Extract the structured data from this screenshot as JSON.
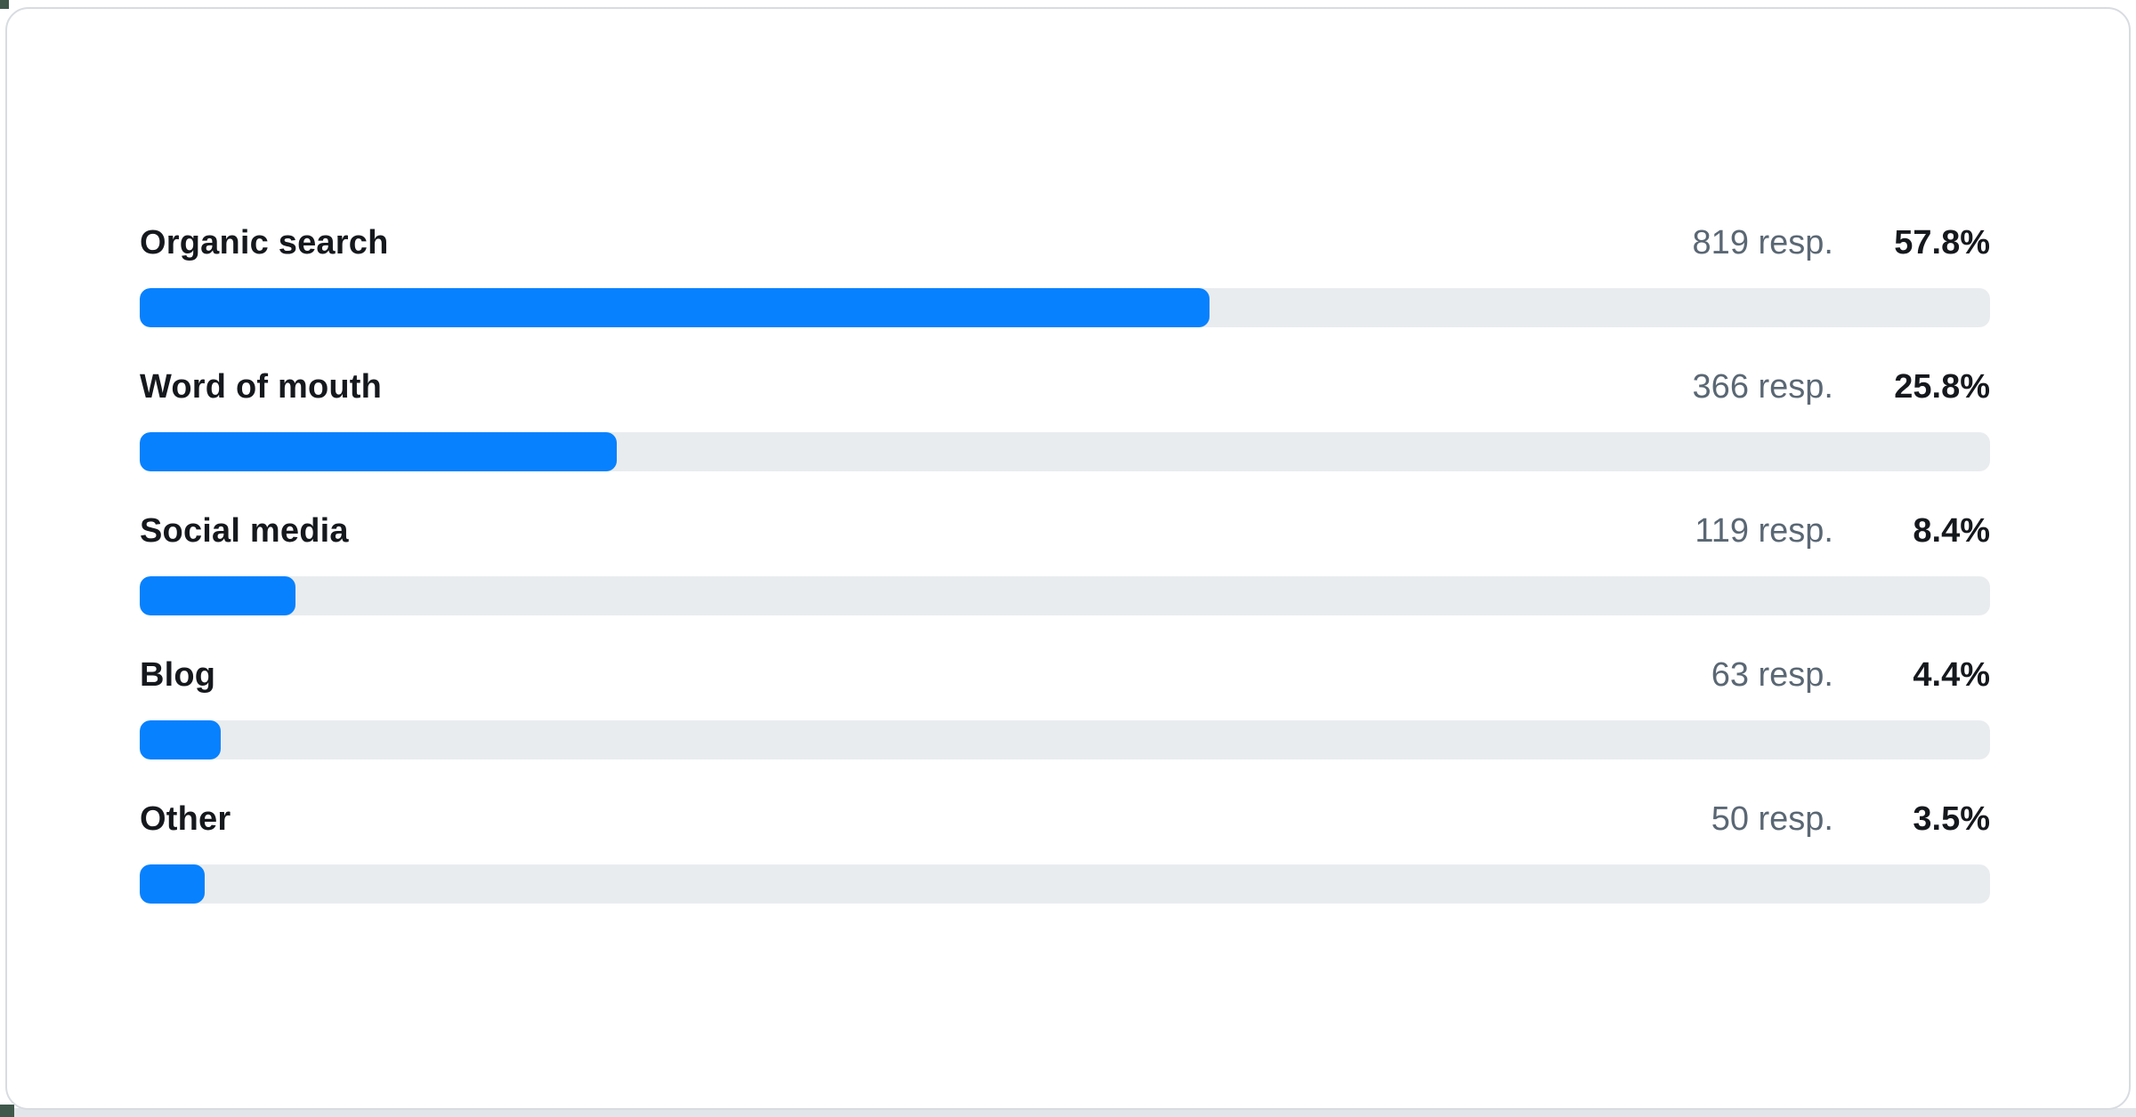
{
  "chart_data": {
    "type": "bar",
    "orientation": "horizontal",
    "title": "",
    "xlabel": "",
    "ylabel": "",
    "xlim": [
      0,
      100
    ],
    "value_unit": "%",
    "grid": false,
    "legend": false,
    "categories": [
      "Organic search",
      "Word of mouth",
      "Social media",
      "Blog",
      "Other"
    ],
    "values": [
      57.8,
      25.8,
      8.4,
      4.4,
      3.5
    ],
    "rows": [
      {
        "label": "Organic search",
        "responses": 819,
        "responses_label": "819 resp.",
        "percent": 57.8,
        "percent_label": "57.8%"
      },
      {
        "label": "Word of mouth",
        "responses": 366,
        "responses_label": "366 resp.",
        "percent": 25.8,
        "percent_label": "25.8%"
      },
      {
        "label": "Social media",
        "responses": 119,
        "responses_label": "119 resp.",
        "percent": 8.4,
        "percent_label": "8.4%"
      },
      {
        "label": "Blog",
        "responses": 63,
        "responses_label": "63 resp.",
        "percent": 4.4,
        "percent_label": "4.4%"
      },
      {
        "label": "Other",
        "responses": 50,
        "responses_label": "50 resp.",
        "percent": 3.5,
        "percent_label": "3.5%"
      }
    ],
    "colors": {
      "bar": "#0781fe",
      "track": "#e9ecef",
      "label_text": "#15181c",
      "muted_text": "#5a6774",
      "card_border": "#d8dce1",
      "page_strip": "#e2e5e9",
      "corner_peek": "#40584c"
    }
  }
}
